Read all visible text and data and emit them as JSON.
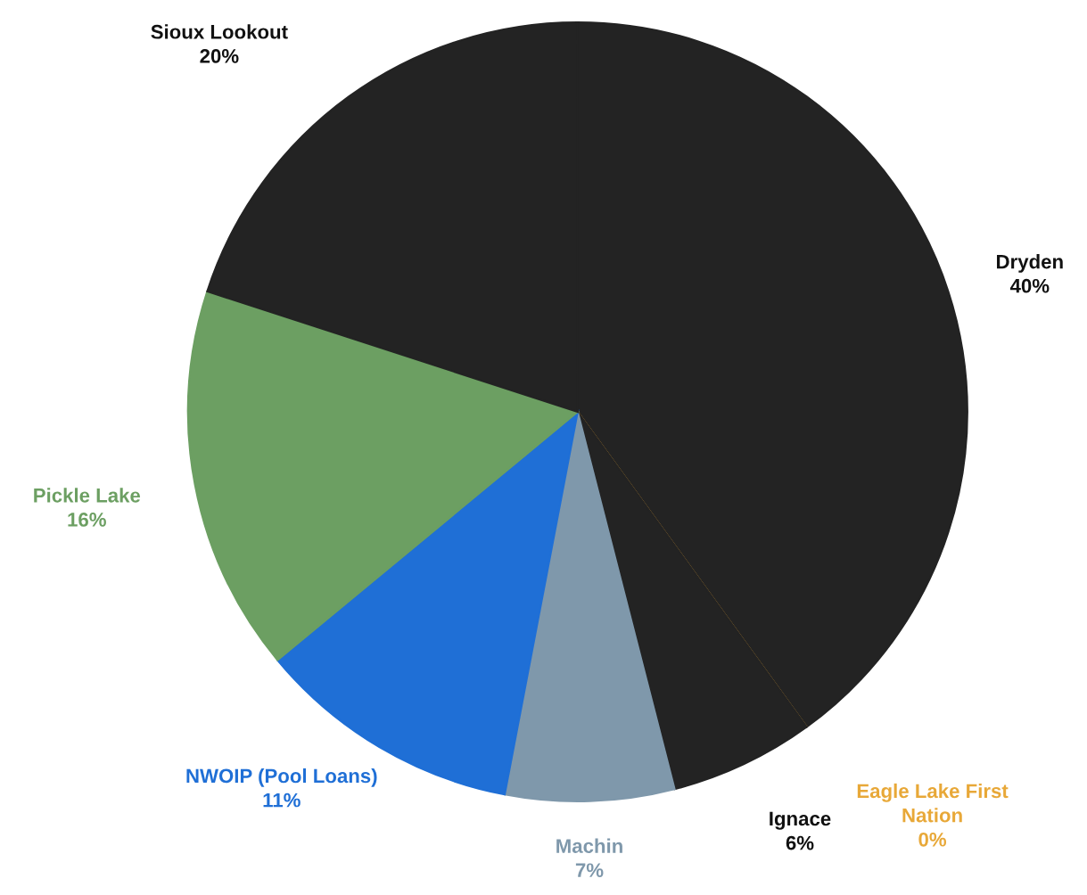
{
  "chart_data": {
    "type": "pie",
    "categories": [
      "Dryden",
      "Eagle Lake First\nNation",
      "Ignace",
      "Machin",
      "NWOIP (Pool Loans)",
      "Pickle Lake",
      "Sioux Lookout"
    ],
    "values": [
      40,
      0,
      6,
      7,
      11,
      16,
      20
    ],
    "colors": [
      "#232323",
      "#e8a838",
      "#232323",
      "#7f98ab",
      "#1f6fd6",
      "#6c9f62",
      "#232323"
    ],
    "value_labels": [
      "40%",
      "0%",
      "6%",
      "7%",
      "11%",
      "16%",
      "20%"
    ]
  }
}
